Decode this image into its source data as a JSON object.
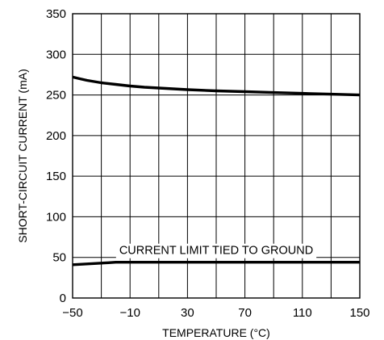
{
  "chart_data": {
    "type": "line",
    "xlabel": "TEMPERATURE (°C)",
    "ylabel": "SHORT-CIRCUIT CURRENT (mA)",
    "xlim": [
      -50,
      150
    ],
    "ylim": [
      0,
      350
    ],
    "x_ticks": [
      -50,
      -10,
      30,
      70,
      110,
      150
    ],
    "y_ticks": [
      0,
      50,
      100,
      150,
      200,
      250,
      300,
      350
    ],
    "x_grid_step": 20,
    "y_grid_step": 50,
    "grid": true,
    "annotations": [
      {
        "text": "CURRENT LIMIT TIED TO GROUND",
        "near_series": 1
      }
    ],
    "series": [
      {
        "x": [
          -50,
          -45,
          -40,
          -30,
          -20,
          -10,
          0,
          10,
          30,
          50,
          70,
          90,
          110,
          130,
          150
        ],
        "y": [
          272,
          270,
          268,
          265,
          263,
          261,
          259.5,
          258.5,
          256.5,
          255,
          254,
          253,
          252,
          251,
          250
        ]
      },
      {
        "x": [
          -50,
          -40,
          -30,
          -25,
          -20,
          0,
          50,
          100,
          150
        ],
        "y": [
          41,
          42,
          43,
          43.5,
          44,
          44,
          44,
          44,
          44
        ]
      }
    ]
  }
}
